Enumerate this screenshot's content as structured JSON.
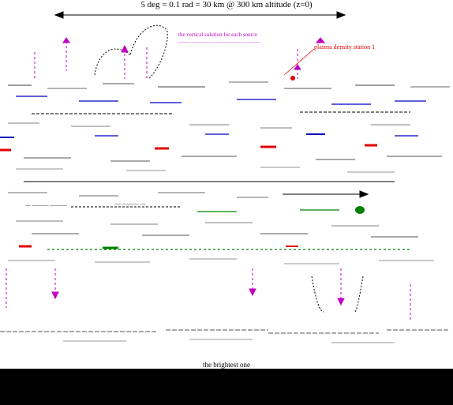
{
  "title": "5 deg  =  0.1 rad  =  30 km @  300 km altitude (z=0)",
  "annotations": {
    "magenta_line1": "the vertical solution for each source",
    "magenta_line2": "—— ———— ————— ———",
    "red_note": "plasma density station 1",
    "left_caption": "— ——— ———",
    "middle_caption": "— ——— —",
    "bottom_caption": "the brightest one"
  },
  "colors": {
    "magenta": "#c000c0",
    "red": "#e00000",
    "blue": "#0000c0",
    "green": "#008000",
    "black": "#000000"
  },
  "icons": [
    "double-headed-arrow-icon",
    "down-arrow-icon",
    "up-arrow-icon",
    "right-arrow-icon"
  ]
}
